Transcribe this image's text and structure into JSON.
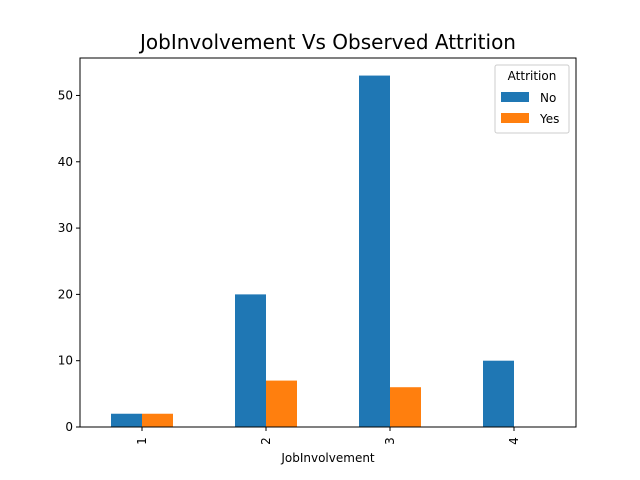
{
  "chart_data": {
    "type": "bar",
    "title": "JobInvolvement Vs Observed Attrition",
    "xlabel": "JobInvolvement",
    "ylabel": "",
    "categories": [
      "1",
      "2",
      "3",
      "4"
    ],
    "series": [
      {
        "name": "No",
        "values": [
          2,
          20,
          53,
          10
        ],
        "color": "#1f77b4"
      },
      {
        "name": "Yes",
        "values": [
          2,
          7,
          6,
          0
        ],
        "color": "#ff7f0e"
      }
    ],
    "ylim": [
      0,
      55.65
    ],
    "yticks": [
      0,
      10,
      20,
      30,
      40,
      50
    ],
    "legend": {
      "title": "Attrition",
      "position": "top-right"
    },
    "grid": false
  }
}
